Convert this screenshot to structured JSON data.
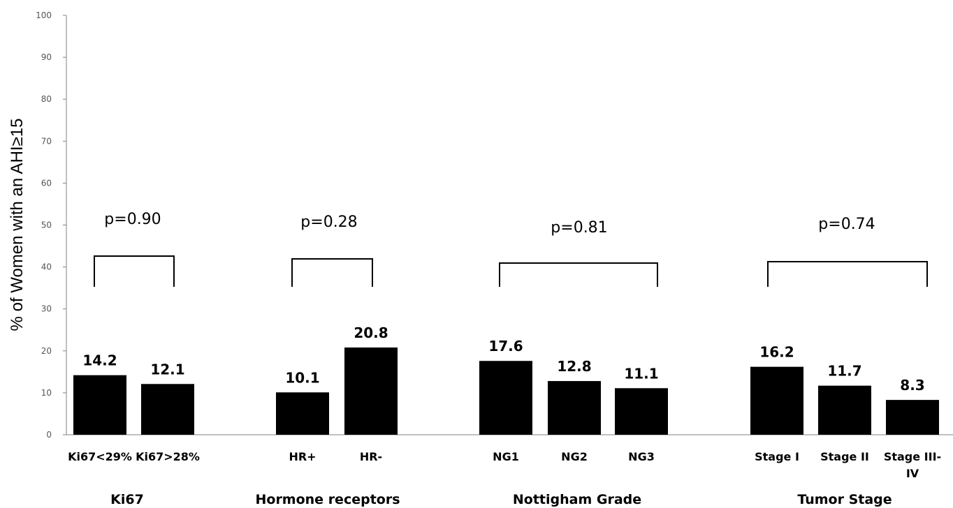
{
  "chart_data": {
    "type": "bar",
    "ylabel": "% of Women with an AHI≥15",
    "ylim": [
      0,
      100
    ],
    "yticks": [
      "0",
      "10",
      "20",
      "30",
      "40",
      "50",
      "60",
      "70",
      "80",
      "90",
      "100"
    ],
    "grid": false,
    "colors": {
      "bar": "#000000",
      "axis": "#808080"
    },
    "groups": [
      {
        "name": "Ki67",
        "p_value": "p=0.90",
        "categories": [
          "Ki67<29%",
          "Ki67>28%"
        ],
        "values": [
          14.2,
          12.1
        ],
        "value_labels": [
          "14.2",
          "12.1"
        ]
      },
      {
        "name": "Hormone receptors",
        "p_value": "p=0.28",
        "categories": [
          "HR+",
          "HR-"
        ],
        "values": [
          10.1,
          20.8
        ],
        "value_labels": [
          "10.1",
          "20.8"
        ]
      },
      {
        "name": "Nottigham Grade",
        "p_value": "p=0.81",
        "categories": [
          "NG1",
          "NG2",
          "NG3"
        ],
        "values": [
          17.6,
          12.8,
          11.1
        ],
        "value_labels": [
          "17.6",
          "12.8",
          "11.1"
        ]
      },
      {
        "name": "Tumor Stage",
        "p_value": "p=0.74",
        "categories": [
          "Stage I",
          "Stage II",
          "Stage III-\nIV"
        ],
        "values": [
          16.2,
          11.7,
          8.3
        ],
        "value_labels": [
          "16.2",
          "11.7",
          "8.3"
        ]
      }
    ]
  }
}
